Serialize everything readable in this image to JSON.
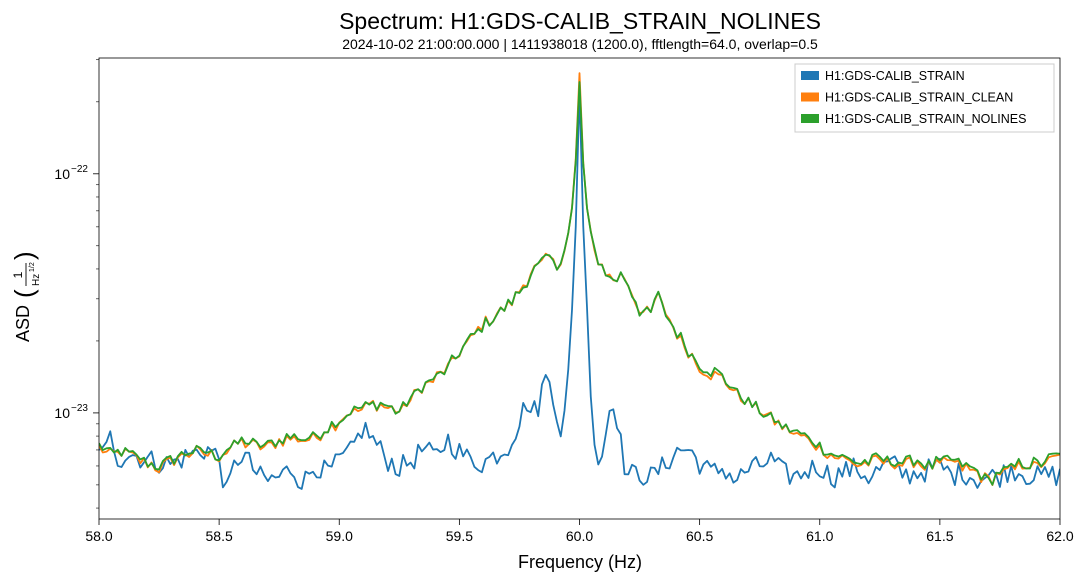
{
  "chart_data": {
    "type": "line",
    "title": "Spectrum: H1:GDS-CALIB_STRAIN_NOLINES",
    "subtitle": "2024-10-02 21:00:00.000 | 1411938018 (1200.0), fftlength=64.0, overlap=0.5",
    "xlabel": "Frequency (Hz)",
    "ylabel": "ASD",
    "ylabel_unit": "1/Hz^1/2",
    "ylabel_unit_num": "1",
    "ylabel_unit_den": "Hz",
    "ylabel_unit_exp": "1/2",
    "xlim": [
      58.0,
      62.0
    ],
    "ylim": [
      3.6e-24,
      3.05e-22
    ],
    "yscale": "log",
    "grid": false,
    "legend_position": "top-right",
    "xticks": [
      58.0,
      58.5,
      59.0,
      59.5,
      60.0,
      60.5,
      61.0,
      61.5,
      62.0
    ],
    "xtick_labels": [
      "58.0",
      "58.5",
      "59.0",
      "59.5",
      "60.0",
      "60.5",
      "61.0",
      "61.5",
      "62.0"
    ],
    "yticks_major": [
      {
        "value": 1e-22,
        "base": "10",
        "exp": "−22"
      },
      {
        "value": 1e-23,
        "base": "10",
        "exp": "−23"
      }
    ],
    "x_step": 0.015625,
    "x_start": 58.0,
    "series": [
      {
        "name": "H1:GDS-CALIB_STRAIN",
        "color": "#1f77b4",
        "anchors": [
          [
            58.0,
            7.5e-24
          ],
          [
            58.02,
            6.5e-24
          ],
          [
            58.05,
            8.1e-24
          ],
          [
            58.08,
            6.4e-24
          ],
          [
            58.12,
            6.8e-24
          ],
          [
            58.2,
            6.4e-24
          ],
          [
            58.3,
            6.1e-24
          ],
          [
            58.35,
            6.5e-24
          ],
          [
            58.4,
            6.8e-24
          ],
          [
            58.45,
            7.1e-24
          ],
          [
            58.5,
            6.5e-24
          ],
          [
            58.53,
            4.6e-24
          ],
          [
            58.57,
            6.3e-24
          ],
          [
            58.6,
            6.8e-24
          ],
          [
            58.66,
            5.5e-24
          ],
          [
            58.7,
            5.2e-24
          ],
          [
            58.75,
            5.4e-24
          ],
          [
            58.8,
            5.9e-24
          ],
          [
            58.85,
            5.1e-24
          ],
          [
            58.9,
            6.1e-24
          ],
          [
            58.95,
            5.6e-24
          ],
          [
            59.0,
            6.3e-24
          ],
          [
            59.05,
            6.9e-24
          ],
          [
            59.1,
            8.8e-24
          ],
          [
            59.15,
            7.5e-24
          ],
          [
            59.2,
            6.4e-24
          ],
          [
            59.25,
            5.9e-24
          ],
          [
            59.3,
            6.3e-24
          ],
          [
            59.35,
            7.1e-24
          ],
          [
            59.4,
            6.5e-24
          ],
          [
            59.45,
            7.8e-24
          ],
          [
            59.5,
            6.9e-24
          ],
          [
            59.55,
            6.3e-24
          ],
          [
            59.6,
            6.2e-24
          ],
          [
            59.65,
            6.7e-24
          ],
          [
            59.7,
            7.2e-24
          ],
          [
            59.75,
            9.2e-24
          ],
          [
            59.78,
            1.13e-23
          ],
          [
            59.8,
            9.9e-24
          ],
          [
            59.83,
            1.08e-23
          ],
          [
            59.85,
            1.35e-23
          ],
          [
            59.87,
            1.43e-23
          ],
          [
            59.89,
            1.22e-23
          ],
          [
            59.92,
            8.4e-24
          ],
          [
            59.94,
            1e-23
          ],
          [
            59.96,
            1.7e-23
          ],
          [
            59.98,
            4.5e-23
          ],
          [
            60.0,
            2.25e-22
          ],
          [
            60.02,
            4.5e-23
          ],
          [
            60.04,
            1.7e-23
          ],
          [
            60.06,
            8e-24
          ],
          [
            60.08,
            6.2e-24
          ],
          [
            60.1,
            7e-24
          ],
          [
            60.12,
            1e-23
          ],
          [
            60.14,
            1.15e-23
          ],
          [
            60.16,
            9.2e-24
          ],
          [
            60.18,
            6.5e-24
          ],
          [
            60.2,
            5.5e-24
          ],
          [
            60.25,
            5.6e-24
          ],
          [
            60.3,
            5.4e-24
          ],
          [
            60.35,
            6e-24
          ],
          [
            60.4,
            6.9e-24
          ],
          [
            60.45,
            7.1e-24
          ],
          [
            60.5,
            6.2e-24
          ],
          [
            60.55,
            5.6e-24
          ],
          [
            60.6,
            5.9e-24
          ],
          [
            60.65,
            5.2e-24
          ],
          [
            60.7,
            5.8e-24
          ],
          [
            60.75,
            6e-24
          ],
          [
            60.8,
            6.4e-24
          ],
          [
            60.85,
            5.6e-24
          ],
          [
            60.9,
            5.4e-24
          ],
          [
            60.95,
            5.8e-24
          ],
          [
            61.0,
            6e-24
          ],
          [
            61.05,
            5.4e-24
          ],
          [
            61.1,
            5.7e-24
          ],
          [
            61.15,
            5.9e-24
          ],
          [
            61.2,
            5.4e-24
          ],
          [
            61.25,
            5.8e-24
          ],
          [
            61.3,
            6.2e-24
          ],
          [
            61.35,
            5.5e-24
          ],
          [
            61.4,
            5.6e-24
          ],
          [
            61.45,
            5.8e-24
          ],
          [
            61.5,
            6e-24
          ],
          [
            61.55,
            5.5e-24
          ],
          [
            61.6,
            5.7e-24
          ],
          [
            61.65,
            5.3e-24
          ],
          [
            61.7,
            5.4e-24
          ],
          [
            61.75,
            5.5e-24
          ],
          [
            61.8,
            5.9e-24
          ],
          [
            61.85,
            5.6e-24
          ],
          [
            61.9,
            5.4e-24
          ],
          [
            61.95,
            5.5e-24
          ],
          [
            62.0,
            5.5e-24
          ]
        ]
      },
      {
        "name": "H1:GDS-CALIB_STRAIN_CLEAN",
        "color": "#ff7f0e",
        "anchors": [
          [
            58.0,
            7.2e-24
          ],
          [
            58.05,
            6.6e-24
          ],
          [
            58.1,
            6.9e-24
          ],
          [
            58.15,
            6.5e-24
          ],
          [
            58.2,
            6.2e-24
          ],
          [
            58.25,
            5.9e-24
          ],
          [
            58.3,
            6.2e-24
          ],
          [
            58.35,
            6.7e-24
          ],
          [
            58.4,
            6.9e-24
          ],
          [
            58.45,
            6.7e-24
          ],
          [
            58.5,
            6.6e-24
          ],
          [
            58.55,
            7.1e-24
          ],
          [
            58.6,
            7.6e-24
          ],
          [
            58.65,
            7.2e-24
          ],
          [
            58.7,
            7.3e-24
          ],
          [
            58.75,
            7.6e-24
          ],
          [
            58.8,
            7.9e-24
          ],
          [
            58.85,
            7.7e-24
          ],
          [
            58.9,
            7.9e-24
          ],
          [
            58.95,
            8.6e-24
          ],
          [
            59.0,
            9.3e-24
          ],
          [
            59.05,
            1.02e-23
          ],
          [
            59.1,
            1.03e-23
          ],
          [
            59.15,
            1.1e-23
          ],
          [
            59.2,
            1.05e-23
          ],
          [
            59.25,
            1e-23
          ],
          [
            59.3,
            1.15e-23
          ],
          [
            59.35,
            1.29e-23
          ],
          [
            59.4,
            1.39e-23
          ],
          [
            59.45,
            1.53e-23
          ],
          [
            59.5,
            1.78e-23
          ],
          [
            59.55,
            2.05e-23
          ],
          [
            59.6,
            2.35e-23
          ],
          [
            59.65,
            2.55e-23
          ],
          [
            59.7,
            2.8e-23
          ],
          [
            59.75,
            3.2e-23
          ],
          [
            59.8,
            3.9e-23
          ],
          [
            59.85,
            4.3e-23
          ],
          [
            59.88,
            4.5e-23
          ],
          [
            59.9,
            4e-23
          ],
          [
            59.93,
            4.6e-23
          ],
          [
            59.96,
            6e-23
          ],
          [
            59.98,
            9e-23
          ],
          [
            60.0,
            2.55e-22
          ],
          [
            60.02,
            9e-23
          ],
          [
            60.04,
            5.8e-23
          ],
          [
            60.06,
            4.8e-23
          ],
          [
            60.08,
            4.3e-23
          ],
          [
            60.1,
            4e-23
          ],
          [
            60.12,
            3.7e-23
          ],
          [
            60.15,
            3.6e-23
          ],
          [
            60.18,
            3.85e-23
          ],
          [
            60.2,
            3.5e-23
          ],
          [
            60.25,
            2.7e-23
          ],
          [
            60.3,
            2.55e-23
          ],
          [
            60.32,
            3.2e-23
          ],
          [
            60.35,
            2.7e-23
          ],
          [
            60.4,
            2.2e-23
          ],
          [
            60.45,
            1.85e-23
          ],
          [
            60.5,
            1.55e-23
          ],
          [
            60.55,
            1.45e-23
          ],
          [
            60.6,
            1.38e-23
          ],
          [
            60.65,
            1.22e-23
          ],
          [
            60.7,
            1.1e-23
          ],
          [
            60.75,
            1.02e-23
          ],
          [
            60.8,
            9.4e-24
          ],
          [
            60.85,
            8.6e-24
          ],
          [
            60.9,
            8.2e-24
          ],
          [
            60.95,
            7.8e-24
          ],
          [
            61.0,
            7.2e-24
          ],
          [
            61.05,
            6.6e-24
          ],
          [
            61.1,
            6.5e-24
          ],
          [
            61.15,
            6.1e-24
          ],
          [
            61.2,
            6.2e-24
          ],
          [
            61.25,
            6.3e-24
          ],
          [
            61.3,
            6.2e-24
          ],
          [
            61.35,
            6.1e-24
          ],
          [
            61.4,
            6.3e-24
          ],
          [
            61.45,
            5.9e-24
          ],
          [
            61.5,
            6.1e-24
          ],
          [
            61.55,
            6.3e-24
          ],
          [
            61.6,
            5.9e-24
          ],
          [
            61.65,
            5.7e-24
          ],
          [
            61.7,
            5.2e-24
          ],
          [
            61.75,
            5.6e-24
          ],
          [
            61.8,
            5.8e-24
          ],
          [
            61.85,
            6.1e-24
          ],
          [
            61.9,
            6e-24
          ],
          [
            61.95,
            6.3e-24
          ],
          [
            62.0,
            6.5e-24
          ]
        ]
      },
      {
        "name": "H1:GDS-CALIB_STRAIN_NOLINES",
        "color": "#2ca02c",
        "anchors": [
          [
            58.0,
            7.3e-24
          ],
          [
            58.05,
            6.7e-24
          ],
          [
            58.1,
            7e-24
          ],
          [
            58.15,
            6.6e-24
          ],
          [
            58.2,
            6.3e-24
          ],
          [
            58.25,
            6e-24
          ],
          [
            58.3,
            6.3e-24
          ],
          [
            58.35,
            6.8e-24
          ],
          [
            58.4,
            7e-24
          ],
          [
            58.45,
            6.8e-24
          ],
          [
            58.5,
            6.7e-24
          ],
          [
            58.55,
            7.2e-24
          ],
          [
            58.6,
            7.7e-24
          ],
          [
            58.65,
            7.3e-24
          ],
          [
            58.7,
            7.4e-24
          ],
          [
            58.75,
            7.7e-24
          ],
          [
            58.8,
            8e-24
          ],
          [
            58.85,
            7.8e-24
          ],
          [
            58.9,
            8e-24
          ],
          [
            58.95,
            8.7e-24
          ],
          [
            59.0,
            9.4e-24
          ],
          [
            59.05,
            1.03e-23
          ],
          [
            59.1,
            1.04e-23
          ],
          [
            59.15,
            1.11e-23
          ],
          [
            59.2,
            1.06e-23
          ],
          [
            59.25,
            1.01e-23
          ],
          [
            59.3,
            1.16e-23
          ],
          [
            59.35,
            1.3e-23
          ],
          [
            59.4,
            1.4e-23
          ],
          [
            59.45,
            1.54e-23
          ],
          [
            59.5,
            1.79e-23
          ],
          [
            59.55,
            2.06e-23
          ],
          [
            59.6,
            2.36e-23
          ],
          [
            59.65,
            2.56e-23
          ],
          [
            59.7,
            2.81e-23
          ],
          [
            59.75,
            3.2e-23
          ],
          [
            59.8,
            3.9e-23
          ],
          [
            59.85,
            4.3e-23
          ],
          [
            59.88,
            4.5e-23
          ],
          [
            59.9,
            4e-23
          ],
          [
            59.93,
            4.6e-23
          ],
          [
            59.96,
            6e-23
          ],
          [
            59.98,
            8.8e-23
          ],
          [
            60.0,
            2.35e-22
          ],
          [
            60.02,
            8.8e-23
          ],
          [
            60.04,
            5.8e-23
          ],
          [
            60.06,
            4.8e-23
          ],
          [
            60.08,
            4.3e-23
          ],
          [
            60.1,
            4e-23
          ],
          [
            60.12,
            3.7e-23
          ],
          [
            60.15,
            3.6e-23
          ],
          [
            60.18,
            3.85e-23
          ],
          [
            60.2,
            3.5e-23
          ],
          [
            60.25,
            2.7e-23
          ],
          [
            60.3,
            2.55e-23
          ],
          [
            60.32,
            3.2e-23
          ],
          [
            60.35,
            2.7e-23
          ],
          [
            60.4,
            2.2e-23
          ],
          [
            60.45,
            1.85e-23
          ],
          [
            60.5,
            1.6e-23
          ],
          [
            60.55,
            1.5e-23
          ],
          [
            60.6,
            1.4e-23
          ],
          [
            60.65,
            1.23e-23
          ],
          [
            60.7,
            1.11e-23
          ],
          [
            60.75,
            1.03e-23
          ],
          [
            60.8,
            9.5e-24
          ],
          [
            60.85,
            8.7e-24
          ],
          [
            60.9,
            8.3e-24
          ],
          [
            60.95,
            7.9e-24
          ],
          [
            61.0,
            7.3e-24
          ],
          [
            61.05,
            6.7e-24
          ],
          [
            61.1,
            6.6e-24
          ],
          [
            61.15,
            6.2e-24
          ],
          [
            61.2,
            6.3e-24
          ],
          [
            61.25,
            6.4e-24
          ],
          [
            61.3,
            6.3e-24
          ],
          [
            61.35,
            6.2e-24
          ],
          [
            61.4,
            6.4e-24
          ],
          [
            61.45,
            6e-24
          ],
          [
            61.5,
            6.2e-24
          ],
          [
            61.55,
            6.4e-24
          ],
          [
            61.6,
            6e-24
          ],
          [
            61.65,
            5.8e-24
          ],
          [
            61.7,
            5.1e-24
          ],
          [
            61.75,
            5.7e-24
          ],
          [
            61.8,
            5.9e-24
          ],
          [
            61.85,
            6.2e-24
          ],
          [
            61.9,
            6.1e-24
          ],
          [
            61.95,
            6.4e-24
          ],
          [
            62.0,
            6.6e-24
          ]
        ]
      }
    ]
  }
}
